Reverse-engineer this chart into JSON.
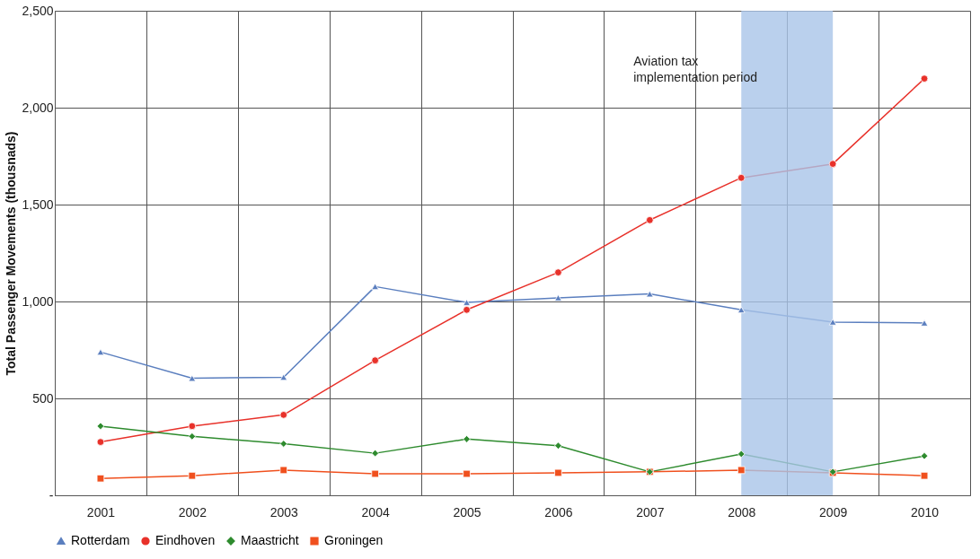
{
  "chart_data": {
    "type": "line",
    "ylabel": "Total Passenger Movements (thousnads)",
    "categories": [
      "2001",
      "2002",
      "2003",
      "2004",
      "2005",
      "2006",
      "2007",
      "2008",
      "2009",
      "2010"
    ],
    "series": [
      {
        "name": "Rotterdam",
        "color": "#5b7fbf",
        "marker": "triangle",
        "values": [
          739,
          604,
          609,
          1077,
          995,
          1019,
          1039,
          957,
          894,
          889
        ]
      },
      {
        "name": "Eindhoven",
        "color": "#e8312a",
        "marker": "circle",
        "values": [
          275,
          357,
          415,
          696,
          957,
          1150,
          1420,
          1638,
          1710,
          2150
        ]
      },
      {
        "name": "Maastricht",
        "color": "#2e8b2e",
        "marker": "diamond",
        "values": [
          357,
          304,
          266,
          217,
          290,
          256,
          121,
          213,
          121,
          203
        ]
      },
      {
        "name": "Groningen",
        "color": "#f0501e",
        "marker": "square",
        "values": [
          87,
          101,
          130,
          111,
          111,
          116,
          121,
          130,
          116,
          101
        ]
      }
    ],
    "ylim": [
      0,
      2500
    ],
    "yticks": [
      {
        "value": 0,
        "label": "-"
      },
      {
        "value": 500,
        "label": "500"
      },
      {
        "value": 1000,
        "label": "1,000"
      },
      {
        "value": 1500,
        "label": "1,500"
      },
      {
        "value": 2000,
        "label": "2,000"
      },
      {
        "value": 2500,
        "label": "2,500"
      }
    ],
    "bands": [
      {
        "axis": "x",
        "from": "2008",
        "to": "2009",
        "label": "Aviation tax\nimplementation period",
        "color": "#a9c4e8"
      }
    ],
    "grid": true,
    "legend": "bottom",
    "line_style": "solid"
  }
}
